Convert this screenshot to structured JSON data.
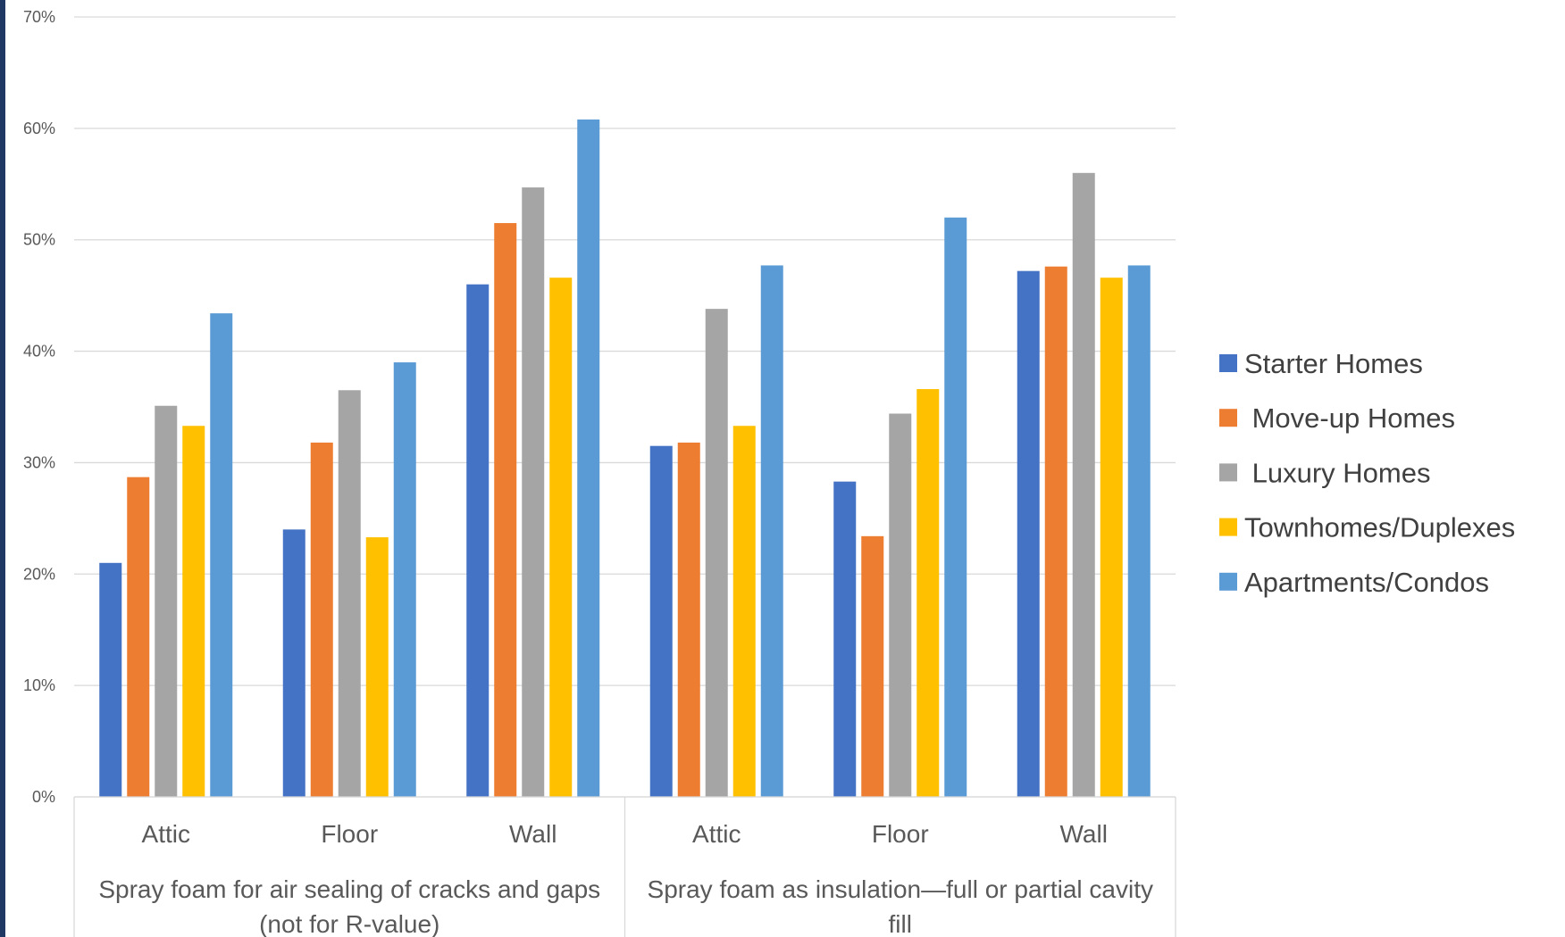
{
  "chart_data": {
    "type": "bar",
    "title": "",
    "xlabel": "",
    "ylabel": "",
    "ylim": [
      0,
      0.7
    ],
    "y_ticks": [
      "0%",
      "10%",
      "20%",
      "30%",
      "40%",
      "50%",
      "60%",
      "70%"
    ],
    "grid": "horizontal",
    "legend_position": "right",
    "categories": [
      "Attic",
      "Floor",
      "Wall",
      "Attic",
      "Floor",
      "Wall"
    ],
    "groups": [
      {
        "label": "Spray foam for air sealing of cracks and gaps (not for R-value)",
        "lines": [
          "Spray foam for air sealing of cracks and gaps",
          "(not for R-value)"
        ]
      },
      {
        "label": "Spray foam as insulation—full or partial cavity fill",
        "lines": [
          "Spray foam as insulation—full or partial cavity",
          "fill"
        ]
      }
    ],
    "series": [
      {
        "name": "Starter Homes",
        "color": "#4472c4",
        "values": [
          0.21,
          0.24,
          0.46,
          0.315,
          0.283,
          0.472
        ]
      },
      {
        "name": " Move-up Homes",
        "color": "#ed7d31",
        "values": [
          0.287,
          0.318,
          0.515,
          0.318,
          0.234,
          0.476
        ]
      },
      {
        "name": " Luxury Homes",
        "color": "#a5a5a5",
        "values": [
          0.351,
          0.365,
          0.547,
          0.438,
          0.344,
          0.56
        ]
      },
      {
        "name": "Townhomes/Duplexes",
        "color": "#ffc000",
        "values": [
          0.333,
          0.233,
          0.466,
          0.333,
          0.366,
          0.466
        ]
      },
      {
        "name": "Apartments/Condos",
        "color": "#5b9bd5",
        "values": [
          0.434,
          0.39,
          0.608,
          0.477,
          0.52,
          0.477
        ]
      }
    ]
  }
}
